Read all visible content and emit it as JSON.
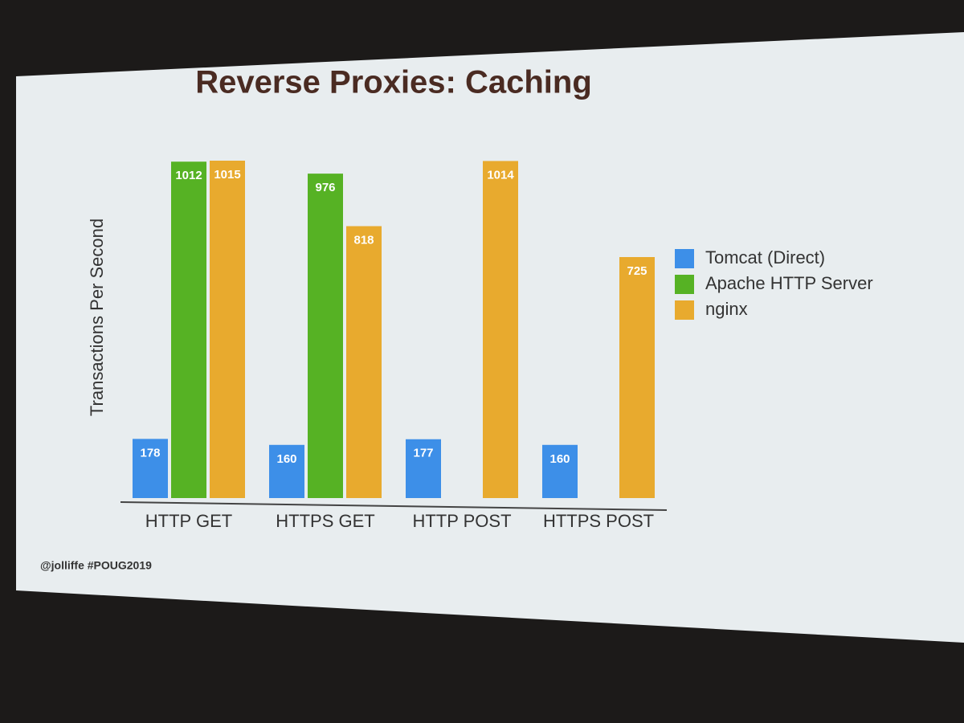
{
  "chart_data": {
    "type": "bar",
    "title": "Reverse Proxies: Caching",
    "y_label": "Transactions Per Second",
    "categories": [
      "HTTP GET",
      "HTTPS GET",
      "HTTP POST",
      "HTTPS POST"
    ],
    "series": [
      {
        "name": "Tomcat (Direct)",
        "color": "#3d8fe8",
        "values": [
          178,
          160,
          177,
          160
        ]
      },
      {
        "name": "Apache HTTP Server",
        "color": "#56b224",
        "values": [
          1012,
          976,
          null,
          null
        ]
      },
      {
        "name": "nginx",
        "color": "#e8aa2e",
        "values": [
          1015,
          818,
          1014,
          725
        ]
      }
    ],
    "legend": "right",
    "footer": "@jolliffe #POUG2019"
  }
}
